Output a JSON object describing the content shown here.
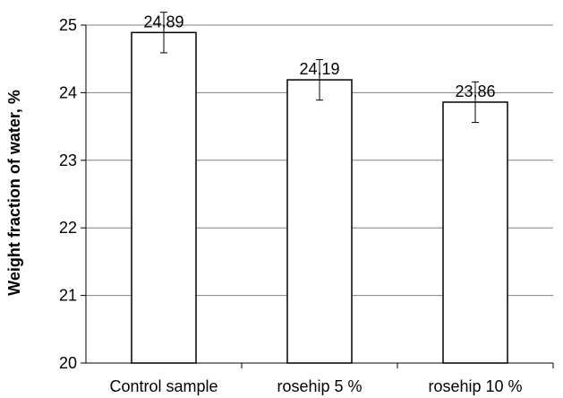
{
  "chart_data": {
    "type": "bar",
    "title": "",
    "xlabel": "",
    "ylabel": "Weight fraction of water, %",
    "categories": [
      "Control sample",
      "rosehip 5 %",
      "rosehip 10 %"
    ],
    "values": [
      24.89,
      24.19,
      23.86
    ],
    "value_labels": [
      "24,89",
      "24,19",
      "23,86"
    ],
    "error": [
      0.3,
      0.3,
      0.3
    ],
    "ylim": [
      20,
      25
    ],
    "yticks": [
      20,
      21,
      22,
      23,
      24,
      25
    ],
    "grid": true,
    "legend": "none",
    "colors": {
      "bar_fill": "#ffffff",
      "bar_stroke": "#000000",
      "grid": "#808080",
      "axis": "#000000"
    }
  }
}
